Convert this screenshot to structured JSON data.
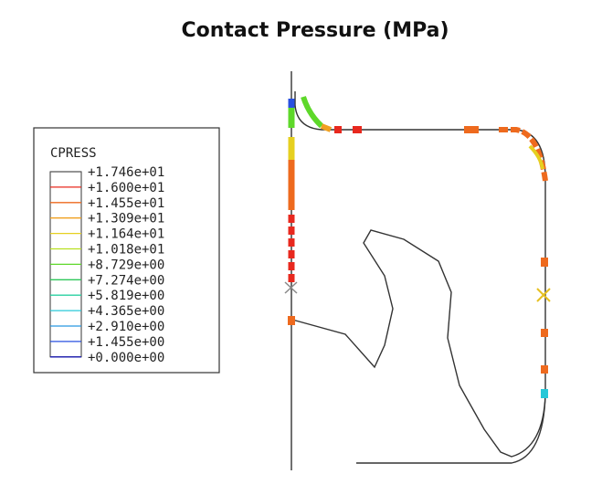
{
  "title": "Contact Pressure (MPa)",
  "legend": {
    "title": "CPRESS",
    "levels": [
      "+1.746e+01",
      "+1.600e+01",
      "+1.455e+01",
      "+1.309e+01",
      "+1.164e+01",
      "+1.018e+01",
      "+8.729e+00",
      "+7.274e+00",
      "+5.819e+00",
      "+4.365e+00",
      "+2.910e+00",
      "+1.455e+00",
      "+0.000e+00"
    ],
    "colors": [
      "#555555",
      "#e8281e",
      "#ee6a1e",
      "#f0a020",
      "#e6d020",
      "#b8e020",
      "#5ed82a",
      "#2ec85a",
      "#28d0a0",
      "#28c8d8",
      "#2896e0",
      "#2850e0",
      "#1a1ab0"
    ]
  }
}
